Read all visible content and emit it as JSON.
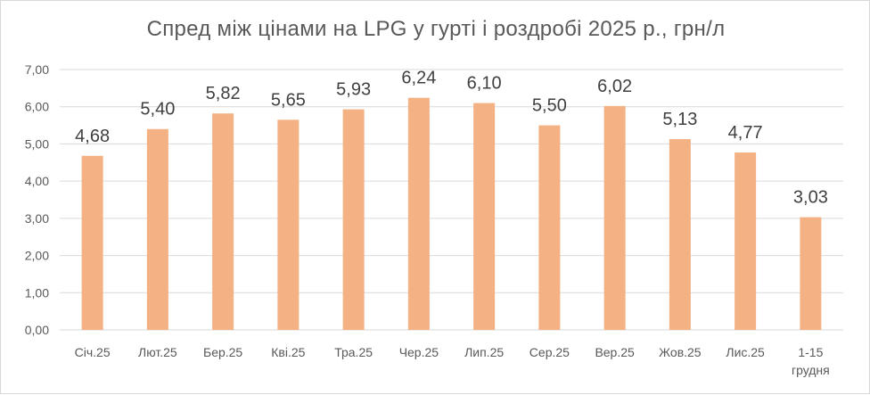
{
  "colors": {
    "bar": "#F4B183",
    "grid": "#D9D9D9",
    "axis_text": "#595959",
    "label_text": "#404040"
  },
  "chart_data": {
    "type": "bar",
    "title": "Спред між цінами на LPG у гурті і роздробі  2025 р., грн/л",
    "xlabel": "",
    "ylabel": "",
    "ylim": [
      0,
      7
    ],
    "ytick_step": 1,
    "ytick_labels": [
      "0,00",
      "1,00",
      "2,00",
      "3,00",
      "4,00",
      "5,00",
      "6,00",
      "7,00"
    ],
    "grid": true,
    "legend": "none",
    "categories": [
      "Січ.25",
      "Лют.25",
      "Бер.25",
      "Кві.25",
      "Тра.25",
      "Чер.25",
      "Лип.25",
      "Сер.25",
      "Вер.25",
      "Жов.25",
      "Лис.25",
      "1-15 грудня"
    ],
    "values": [
      4.68,
      5.4,
      5.82,
      5.65,
      5.93,
      6.24,
      6.1,
      5.5,
      6.02,
      5.13,
      4.77,
      3.03
    ],
    "value_labels": [
      "4,68",
      "5,40",
      "5,82",
      "5,65",
      "5,93",
      "6,24",
      "6,10",
      "5,50",
      "6,02",
      "5,13",
      "4,77",
      "3,03"
    ]
  }
}
